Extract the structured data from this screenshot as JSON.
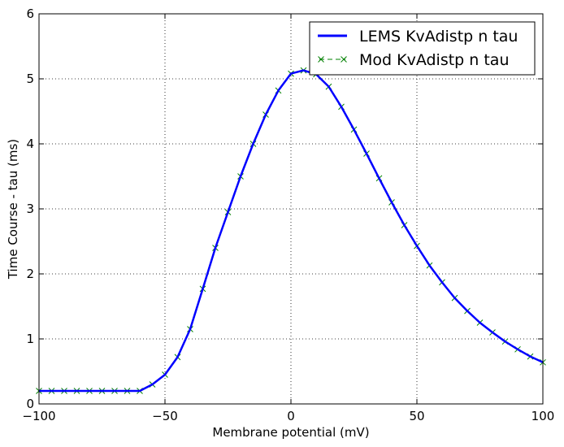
{
  "chart_data": {
    "type": "line",
    "title": "",
    "xlabel": "Membrane potential (mV)",
    "ylabel": "Time Course - tau (ms)",
    "xlim": [
      -100,
      100
    ],
    "ylim": [
      0,
      6
    ],
    "grid": true,
    "legend_position": "top-right",
    "x_ticks": [
      -100,
      -50,
      0,
      50,
      100
    ],
    "x_tick_labels": [
      "−100",
      "−50",
      "0",
      "50",
      "100"
    ],
    "y_ticks": [
      0,
      1,
      2,
      3,
      4,
      5,
      6
    ],
    "y_tick_labels": [
      "0",
      "1",
      "2",
      "3",
      "4",
      "5",
      "6"
    ],
    "series": [
      {
        "name": "LEMS KvAdistp n tau",
        "style": "solid-line",
        "color": "#0000ff",
        "x": [
          -100,
          -95,
          -90,
          -85,
          -80,
          -75,
          -70,
          -65,
          -60,
          -55,
          -50,
          -45,
          -40,
          -35,
          -30,
          -25,
          -20,
          -15,
          -10,
          -5,
          0,
          5,
          10,
          15,
          20,
          25,
          30,
          35,
          40,
          45,
          50,
          55,
          60,
          65,
          70,
          75,
          80,
          85,
          90,
          95,
          100
        ],
        "y": [
          0.2,
          0.2,
          0.2,
          0.2,
          0.2,
          0.2,
          0.2,
          0.2,
          0.2,
          0.3,
          0.45,
          0.72,
          1.15,
          1.77,
          2.4,
          2.95,
          3.5,
          4.0,
          4.45,
          4.82,
          5.08,
          5.13,
          5.07,
          4.88,
          4.57,
          4.22,
          3.85,
          3.47,
          3.1,
          2.75,
          2.43,
          2.13,
          1.87,
          1.63,
          1.43,
          1.25,
          1.1,
          0.96,
          0.84,
          0.73,
          0.64
        ]
      },
      {
        "name": "Mod KvAdistp n tau",
        "style": "dashed-x",
        "color": "#008000",
        "x": [
          -100,
          -95,
          -90,
          -85,
          -80,
          -75,
          -70,
          -65,
          -60,
          -55,
          -50,
          -45,
          -40,
          -35,
          -30,
          -25,
          -20,
          -15,
          -10,
          -5,
          0,
          5,
          10,
          15,
          20,
          25,
          30,
          35,
          40,
          45,
          50,
          55,
          60,
          65,
          70,
          75,
          80,
          85,
          90,
          95,
          100
        ],
        "y": [
          0.2,
          0.2,
          0.2,
          0.2,
          0.2,
          0.2,
          0.2,
          0.2,
          0.2,
          0.3,
          0.45,
          0.72,
          1.15,
          1.77,
          2.4,
          2.95,
          3.5,
          4.0,
          4.45,
          4.82,
          5.08,
          5.13,
          5.07,
          4.88,
          4.57,
          4.22,
          3.85,
          3.47,
          3.1,
          2.75,
          2.43,
          2.13,
          1.87,
          1.63,
          1.43,
          1.25,
          1.1,
          0.96,
          0.84,
          0.73,
          0.64
        ]
      }
    ]
  }
}
